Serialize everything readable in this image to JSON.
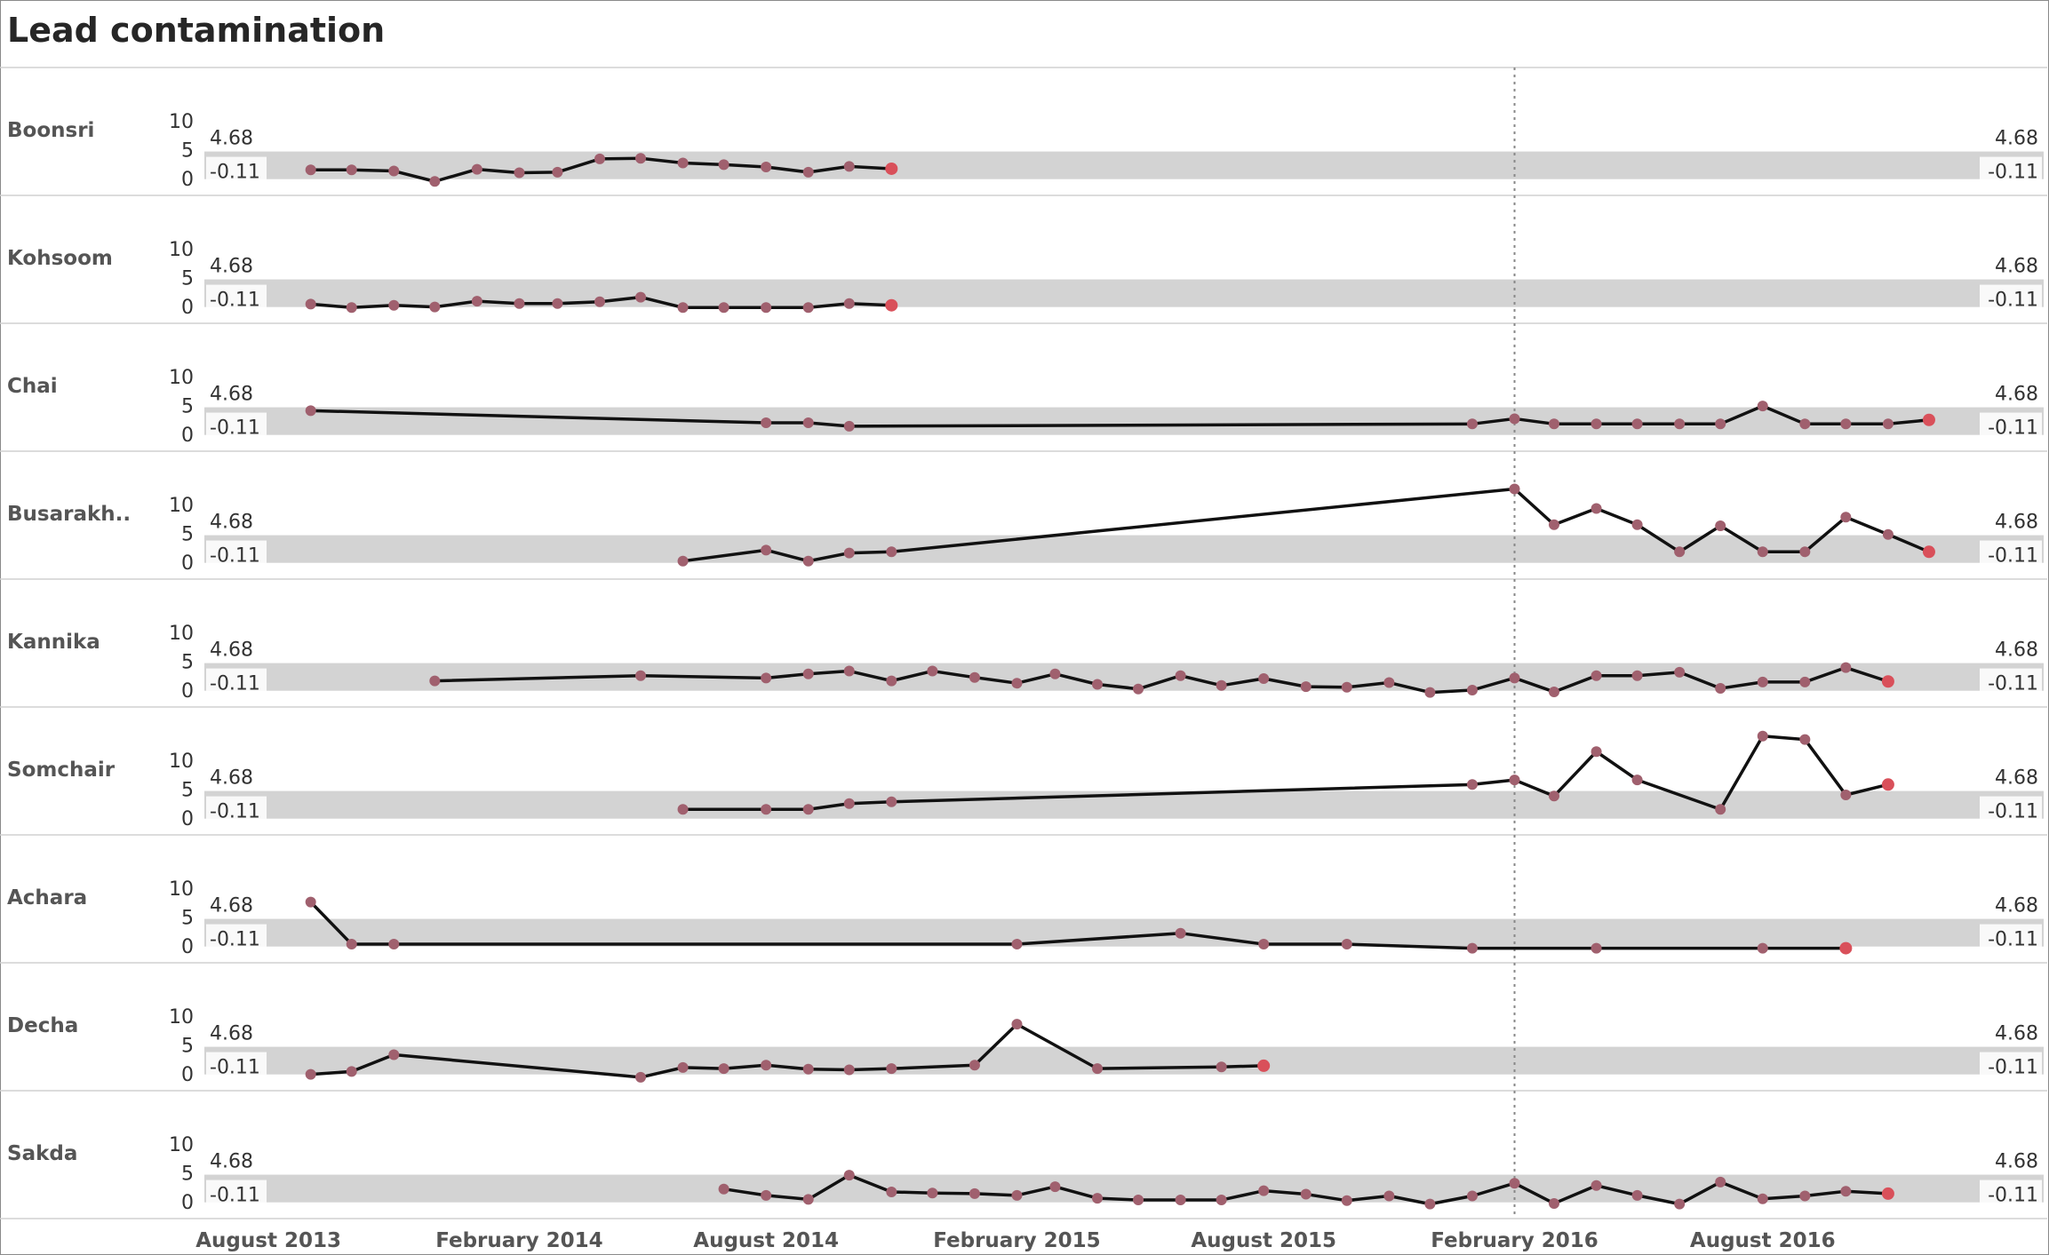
{
  "title": "Lead contamination",
  "chart_data": {
    "type": "line",
    "title": "Lead contamination",
    "xlabel": "",
    "ylabel": "",
    "ylim": [
      -2,
      14
    ],
    "y_ticks": [
      0,
      5,
      10
    ],
    "x_ticks": [
      "August 2013",
      "February 2014",
      "August 2014",
      "February 2015",
      "August 2015",
      "February 2016",
      "August 2016"
    ],
    "x_tick_dates": [
      "2013-08-01",
      "2014-02-01",
      "2014-08-01",
      "2015-02-01",
      "2015-08-01",
      "2016-02-01",
      "2016-08-01"
    ],
    "x_range": [
      "2013-06-15",
      "2017-01-15"
    ],
    "reference_line_date": "2016-02-01",
    "control_band": {
      "upper": 4.68,
      "lower": -0.11,
      "upper_label": "4.68",
      "lower_label": "-0.11"
    },
    "colors": {
      "line": "#111111",
      "point": "#a0606e",
      "last_point": "#d9505a",
      "band": "#d3d3d3",
      "ref_line": "#888888"
    },
    "series": [
      {
        "name": "Boonsri",
        "points": [
          [
            "2013-09-01",
            1.5
          ],
          [
            "2013-10-01",
            1.5
          ],
          [
            "2013-11-01",
            1.3
          ],
          [
            "2013-12-01",
            -0.5
          ],
          [
            "2014-01-01",
            1.6
          ],
          [
            "2014-02-01",
            1.0
          ],
          [
            "2014-03-01",
            1.1
          ],
          [
            "2014-04-01",
            3.4
          ],
          [
            "2014-05-01",
            3.5
          ],
          [
            "2014-06-01",
            2.7
          ],
          [
            "2014-07-01",
            2.4
          ],
          [
            "2014-08-01",
            2.0
          ],
          [
            "2014-09-01",
            1.1
          ],
          [
            "2014-10-01",
            2.1
          ],
          [
            "2014-11-01",
            1.7
          ]
        ]
      },
      {
        "name": "Kohsoom",
        "points": [
          [
            "2013-09-01",
            0.4
          ],
          [
            "2013-10-01",
            -0.2
          ],
          [
            "2013-11-01",
            0.2
          ],
          [
            "2013-12-01",
            -0.1
          ],
          [
            "2014-01-01",
            0.9
          ],
          [
            "2014-02-01",
            0.5
          ],
          [
            "2014-03-01",
            0.5
          ],
          [
            "2014-04-01",
            0.8
          ],
          [
            "2014-05-01",
            1.6
          ],
          [
            "2014-06-01",
            -0.2
          ],
          [
            "2014-07-01",
            -0.2
          ],
          [
            "2014-08-01",
            -0.2
          ],
          [
            "2014-09-01",
            -0.2
          ],
          [
            "2014-10-01",
            0.5
          ],
          [
            "2014-11-01",
            0.2
          ]
        ]
      },
      {
        "name": "Chai",
        "points": [
          [
            "2013-09-01",
            4.1
          ],
          [
            "2014-08-01",
            2.0
          ],
          [
            "2014-09-01",
            2.0
          ],
          [
            "2014-10-01",
            1.4
          ],
          [
            "2016-01-01",
            1.8
          ],
          [
            "2016-02-01",
            2.7
          ],
          [
            "2016-03-01",
            1.8
          ],
          [
            "2016-04-01",
            1.8
          ],
          [
            "2016-05-01",
            1.8
          ],
          [
            "2016-06-01",
            1.8
          ],
          [
            "2016-07-01",
            1.8
          ],
          [
            "2016-08-01",
            4.9
          ],
          [
            "2016-09-01",
            1.8
          ],
          [
            "2016-10-01",
            1.8
          ],
          [
            "2016-11-01",
            1.8
          ],
          [
            "2016-12-01",
            2.5
          ]
        ]
      },
      {
        "name": "Busarakh..",
        "points": [
          [
            "2014-06-01",
            0.2
          ],
          [
            "2014-08-01",
            2.1
          ],
          [
            "2014-09-01",
            0.2
          ],
          [
            "2014-10-01",
            1.6
          ],
          [
            "2014-11-01",
            1.8
          ],
          [
            "2016-02-01",
            12.7
          ],
          [
            "2016-03-01",
            6.5
          ],
          [
            "2016-04-01",
            9.3
          ],
          [
            "2016-05-01",
            6.5
          ],
          [
            "2016-06-01",
            1.8
          ],
          [
            "2016-07-01",
            6.3
          ],
          [
            "2016-08-01",
            1.8
          ],
          [
            "2016-09-01",
            1.8
          ],
          [
            "2016-10-01",
            7.8
          ],
          [
            "2016-11-01",
            4.8
          ],
          [
            "2016-12-01",
            1.8
          ]
        ]
      },
      {
        "name": "Kannika",
        "points": [
          [
            "2013-12-01",
            1.6
          ],
          [
            "2014-05-01",
            2.5
          ],
          [
            "2014-08-01",
            2.1
          ],
          [
            "2014-09-01",
            2.8
          ],
          [
            "2014-10-01",
            3.3
          ],
          [
            "2014-11-01",
            1.6
          ],
          [
            "2014-12-01",
            3.3
          ],
          [
            "2015-01-01",
            2.2
          ],
          [
            "2015-02-01",
            1.2
          ],
          [
            "2015-03-01",
            2.8
          ],
          [
            "2015-04-01",
            1.0
          ],
          [
            "2015-05-01",
            0.2
          ],
          [
            "2015-06-01",
            2.5
          ],
          [
            "2015-07-01",
            0.8
          ],
          [
            "2015-08-01",
            2.0
          ],
          [
            "2015-09-01",
            0.6
          ],
          [
            "2015-10-01",
            0.5
          ],
          [
            "2015-11-01",
            1.3
          ],
          [
            "2015-12-01",
            -0.4
          ],
          [
            "2016-01-01",
            0.0
          ],
          [
            "2016-02-01",
            2.1
          ],
          [
            "2016-03-01",
            -0.3
          ],
          [
            "2016-04-01",
            2.5
          ],
          [
            "2016-05-01",
            2.5
          ],
          [
            "2016-06-01",
            3.1
          ],
          [
            "2016-07-01",
            0.3
          ],
          [
            "2016-08-01",
            1.4
          ],
          [
            "2016-09-01",
            1.4
          ],
          [
            "2016-10-01",
            3.9
          ],
          [
            "2016-11-01",
            1.5
          ]
        ]
      },
      {
        "name": "Somchair",
        "points": [
          [
            "2014-06-01",
            1.5
          ],
          [
            "2014-08-01",
            1.5
          ],
          [
            "2014-09-01",
            1.5
          ],
          [
            "2014-10-01",
            2.5
          ],
          [
            "2014-11-01",
            2.8
          ],
          [
            "2016-01-01",
            5.8
          ],
          [
            "2016-02-01",
            6.6
          ],
          [
            "2016-03-01",
            3.8
          ],
          [
            "2016-04-01",
            11.5
          ],
          [
            "2016-05-01",
            6.6
          ],
          [
            "2016-07-01",
            1.5
          ],
          [
            "2016-08-01",
            14.2
          ],
          [
            "2016-09-01",
            13.6
          ],
          [
            "2016-10-01",
            4.0
          ],
          [
            "2016-11-01",
            5.8
          ]
        ]
      },
      {
        "name": "Achara",
        "points": [
          [
            "2013-09-01",
            7.6
          ],
          [
            "2013-10-01",
            0.3
          ],
          [
            "2013-11-01",
            0.3
          ],
          [
            "2015-02-01",
            0.3
          ],
          [
            "2015-06-01",
            2.2
          ],
          [
            "2015-08-01",
            0.3
          ],
          [
            "2015-10-01",
            0.3
          ],
          [
            "2016-01-01",
            -0.4
          ],
          [
            "2016-04-01",
            -0.4
          ],
          [
            "2016-08-01",
            -0.4
          ],
          [
            "2016-10-01",
            -0.4
          ]
        ]
      },
      {
        "name": "Decha",
        "points": [
          [
            "2013-09-01",
            -0.1
          ],
          [
            "2013-10-01",
            0.4
          ],
          [
            "2013-11-01",
            3.3
          ],
          [
            "2014-05-01",
            -0.6
          ],
          [
            "2014-06-01",
            1.1
          ],
          [
            "2014-07-01",
            0.9
          ],
          [
            "2014-08-01",
            1.5
          ],
          [
            "2014-09-01",
            0.8
          ],
          [
            "2014-10-01",
            0.7
          ],
          [
            "2014-11-01",
            0.9
          ],
          [
            "2015-01-01",
            1.5
          ],
          [
            "2015-02-01",
            8.6
          ],
          [
            "2015-04-01",
            0.9
          ],
          [
            "2015-07-01",
            1.2
          ],
          [
            "2015-08-01",
            1.4
          ]
        ]
      },
      {
        "name": "Sakda",
        "points": [
          [
            "2014-07-01",
            2.2
          ],
          [
            "2014-08-01",
            1.1
          ],
          [
            "2014-09-01",
            0.4
          ],
          [
            "2014-10-01",
            4.6
          ],
          [
            "2014-11-01",
            1.7
          ],
          [
            "2014-12-01",
            1.5
          ],
          [
            "2015-01-01",
            1.4
          ],
          [
            "2015-02-01",
            1.1
          ],
          [
            "2015-03-01",
            2.6
          ],
          [
            "2015-04-01",
            0.6
          ],
          [
            "2015-05-01",
            0.3
          ],
          [
            "2015-06-01",
            0.3
          ],
          [
            "2015-07-01",
            0.3
          ],
          [
            "2015-08-01",
            1.9
          ],
          [
            "2015-09-01",
            1.3
          ],
          [
            "2015-10-01",
            0.2
          ],
          [
            "2015-11-01",
            1.0
          ],
          [
            "2015-12-01",
            -0.4
          ],
          [
            "2016-01-01",
            1.0
          ],
          [
            "2016-02-01",
            3.2
          ],
          [
            "2016-03-01",
            -0.3
          ],
          [
            "2016-04-01",
            2.8
          ],
          [
            "2016-05-01",
            1.1
          ],
          [
            "2016-06-01",
            -0.4
          ],
          [
            "2016-07-01",
            3.4
          ],
          [
            "2016-08-01",
            0.5
          ],
          [
            "2016-09-01",
            1.0
          ],
          [
            "2016-10-01",
            1.8
          ],
          [
            "2016-11-01",
            1.4
          ]
        ]
      }
    ]
  }
}
